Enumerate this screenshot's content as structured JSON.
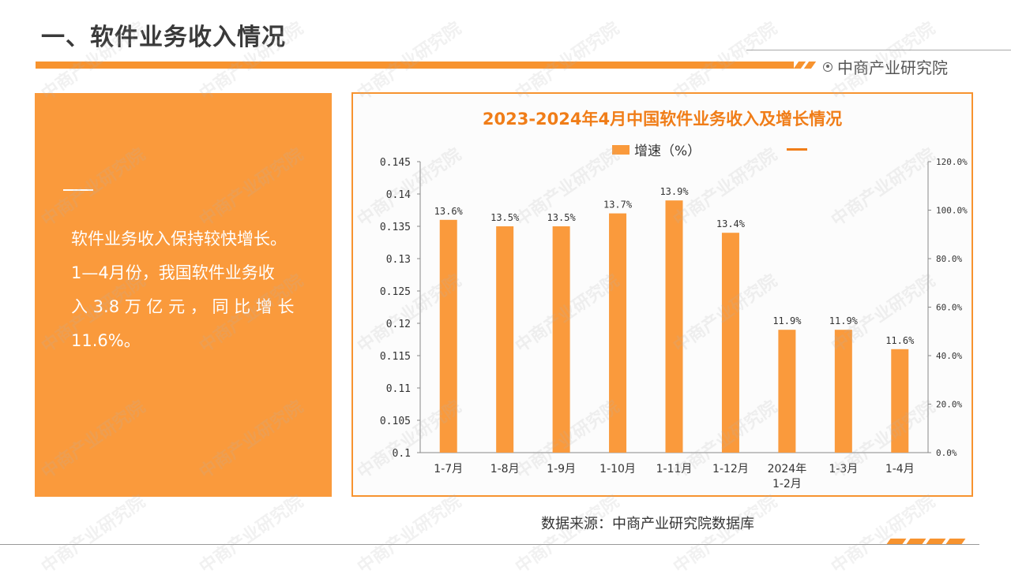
{
  "page": {
    "title": "一、软件业务收入情况",
    "logo_text": "中商产业研究院",
    "source": "数据来源：中商产业研究院数据库",
    "watermark": "中商产业研究院"
  },
  "left_panel": {
    "lines": [
      "软件业务收入保持较快增长。",
      "1—4月份，我国软件业务收",
      "入 3.8 万 亿 元 ， 同 比 增 长",
      "11.6%。"
    ]
  },
  "colors": {
    "accent": "#f7932f",
    "bar": "#fa9a3c",
    "title": "#f07d18"
  },
  "chart_data": {
    "type": "bar",
    "title": "2023-2024年4月中国软件业务收入及增长情况",
    "legend": [
      "增速（%）"
    ],
    "legend_placement": "top",
    "categories": [
      "1-7月",
      "1-8月",
      "1-9月",
      "1-10月",
      "1-11月",
      "1-12月",
      "2024年\n1-2月",
      "1-3月",
      "1-4月"
    ],
    "series": [
      {
        "name": "增速（%）",
        "values": [
          0.136,
          0.135,
          0.135,
          0.137,
          0.139,
          0.134,
          0.119,
          0.119,
          0.116
        ],
        "labels": [
          "13.6%",
          "13.5%",
          "13.5%",
          "13.7%",
          "13.9%",
          "13.4%",
          "11.9%",
          "11.9%",
          "11.6%"
        ]
      }
    ],
    "y_left": {
      "ylim": [
        0.1,
        0.145
      ],
      "ticks": [
        "0.1",
        "0.105",
        "0.11",
        "0.115",
        "0.12",
        "0.125",
        "0.13",
        "0.135",
        "0.14",
        "0.145"
      ]
    },
    "y_right": {
      "ylim": [
        0,
        1.2
      ],
      "ticks": [
        "0.0%",
        "20.0%",
        "40.0%",
        "60.0%",
        "80.0%",
        "100.0%",
        "120.0%"
      ]
    },
    "grid": false
  }
}
